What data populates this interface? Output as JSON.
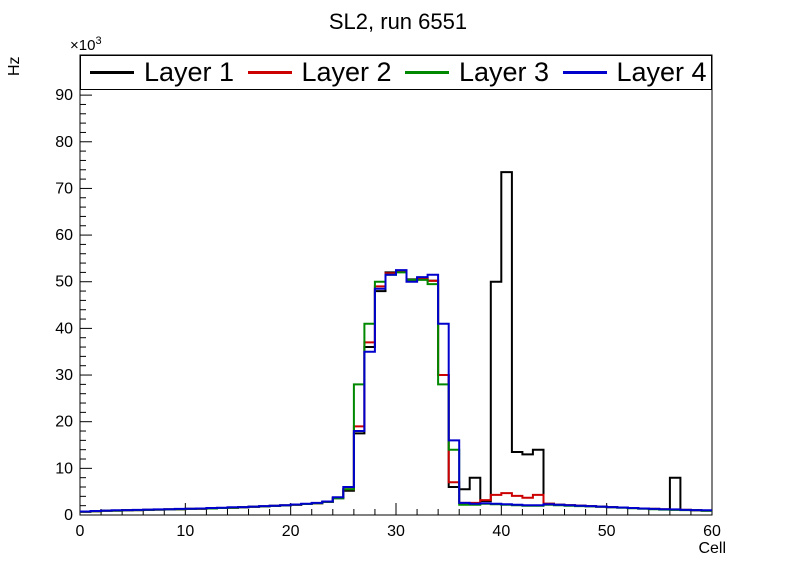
{
  "page": {
    "title": "SL2, run 6551"
  },
  "chart_data": {
    "type": "line",
    "subtype": "step-histogram",
    "title": "SL2, run 6551",
    "xlabel": "Cell",
    "ylabel": "Hz",
    "y_axis_multiplier": {
      "base": "×10",
      "exponent": "3"
    },
    "xlim": [
      0,
      60
    ],
    "ylim": [
      0,
      98.6
    ],
    "x_major_ticks": [
      0,
      10,
      20,
      30,
      40,
      50,
      60
    ],
    "y_major_ticks": [
      0,
      10,
      20,
      30,
      40,
      50,
      60,
      70,
      80,
      90
    ],
    "x_minor_step": 2,
    "y_minor_step": 2,
    "bin_width": 1,
    "grid": false,
    "legend_position": "top",
    "frame_color": "#000000",
    "background": "#ffffff",
    "values_unit": "kHz (axis shows Hz ×10³)",
    "series": [
      {
        "name": "Layer 1",
        "color": "#000000",
        "values": [
          0.7,
          0.8,
          0.9,
          0.95,
          1.0,
          1.05,
          1.1,
          1.15,
          1.2,
          1.25,
          1.3,
          1.35,
          1.4,
          1.5,
          1.55,
          1.65,
          1.75,
          1.85,
          1.95,
          2.05,
          2.2,
          2.35,
          2.5,
          2.8,
          3.6,
          5.2,
          17.5,
          36,
          48,
          52,
          52.3,
          50.5,
          50.8,
          50.2,
          30,
          6,
          5.5,
          8,
          3,
          50,
          73.5,
          13.5,
          13,
          14,
          2.4,
          2.2,
          2.1,
          2.0,
          1.9,
          1.8,
          1.7,
          1.6,
          1.5,
          1.4,
          1.3,
          1.2,
          8,
          1.1,
          1.0,
          0.95
        ]
      },
      {
        "name": "Layer 2",
        "color": "#cc0000",
        "values": [
          0.7,
          0.8,
          0.9,
          0.95,
          1.0,
          1.05,
          1.1,
          1.15,
          1.2,
          1.25,
          1.3,
          1.35,
          1.4,
          1.5,
          1.55,
          1.65,
          1.75,
          1.85,
          1.95,
          2.05,
          2.2,
          2.35,
          2.5,
          2.8,
          3.7,
          5.5,
          19,
          37,
          49,
          51.8,
          52.2,
          50.2,
          50.6,
          50.2,
          30,
          7,
          2.6,
          2.6,
          3.2,
          4.3,
          4.7,
          4.1,
          3.7,
          4.3,
          2.4,
          2.2,
          2.1,
          2.0,
          1.9,
          1.8,
          1.7,
          1.6,
          1.5,
          1.4,
          1.3,
          1.2,
          1.15,
          1.1,
          1.0,
          0.95
        ]
      },
      {
        "name": "Layer 3",
        "color": "#008800",
        "values": [
          0.7,
          0.8,
          0.9,
          0.95,
          1.0,
          1.05,
          1.1,
          1.15,
          1.2,
          1.25,
          1.3,
          1.35,
          1.4,
          1.5,
          1.55,
          1.65,
          1.75,
          1.85,
          1.95,
          2.05,
          2.2,
          2.35,
          2.5,
          2.8,
          3.6,
          5.5,
          28,
          41,
          50,
          51.5,
          52.0,
          50.4,
          50.4,
          49.5,
          28,
          14,
          2.2,
          2.2,
          2.4,
          2.3,
          2.2,
          2.1,
          2.0,
          2.0,
          2.2,
          2.1,
          2.0,
          1.9,
          1.85,
          1.75,
          1.65,
          1.55,
          1.45,
          1.35,
          1.25,
          1.15,
          1.1,
          1.05,
          1.0,
          0.9
        ]
      },
      {
        "name": "Layer 4",
        "color": "#0000cc",
        "values": [
          0.75,
          0.85,
          0.95,
          1.0,
          1.05,
          1.1,
          1.15,
          1.2,
          1.25,
          1.3,
          1.35,
          1.4,
          1.5,
          1.55,
          1.65,
          1.7,
          1.8,
          1.9,
          2.0,
          2.1,
          2.25,
          2.4,
          2.6,
          2.9,
          3.8,
          6.0,
          18,
          35,
          48.5,
          51.5,
          52.5,
          50.0,
          51.0,
          51.5,
          41,
          16,
          2.6,
          2.4,
          2.5,
          2.4,
          2.3,
          2.2,
          2.1,
          2.1,
          2.3,
          2.2,
          2.1,
          2.0,
          1.9,
          1.8,
          1.7,
          1.6,
          1.5,
          1.4,
          1.3,
          1.25,
          1.2,
          1.1,
          1.05,
          1.0
        ]
      }
    ]
  }
}
